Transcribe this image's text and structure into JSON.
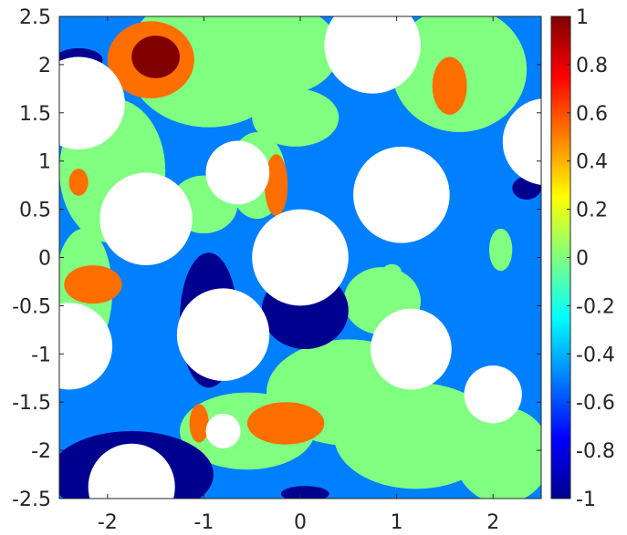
{
  "chart_data": {
    "type": "heatmap",
    "subtype": "filled-contour",
    "title": "",
    "xlabel": "",
    "ylabel": "",
    "xlim": [
      -2.5,
      2.5
    ],
    "ylim": [
      -2.5,
      2.5
    ],
    "x_ticks": [
      -2,
      -1,
      0,
      1,
      2
    ],
    "x_tick_labels": [
      "-2",
      "-1",
      "0",
      "1",
      "2"
    ],
    "y_ticks": [
      -2.5,
      -2,
      -1.5,
      -1,
      -0.5,
      0,
      0.5,
      1,
      1.5,
      2,
      2.5
    ],
    "y_tick_labels": [
      "-2.5",
      "-2",
      "-1.5",
      "-1",
      "-0.5",
      "0",
      "0.5",
      "1",
      "1.5",
      "2",
      "2.5"
    ],
    "grid": false,
    "colormap": "jet",
    "colorbar": {
      "position": "right",
      "range": [
        -1,
        1
      ],
      "ticks": [
        -1,
        -0.8,
        -0.6,
        -0.4,
        -0.2,
        0,
        0.2,
        0.4,
        0.6,
        0.8,
        1
      ],
      "tick_labels": [
        "-1",
        "-0.8",
        "-0.6",
        "-0.4",
        "-0.2",
        "0",
        "0.2",
        "0.4",
        "0.6",
        "0.8",
        "1"
      ]
    },
    "level_colors": {
      "-1": "#00008f",
      "-0.5": "#0080ff",
      "0": "#80ff80",
      "0.5": "#ff6e00",
      "1": "#800000"
    },
    "background_level": -0.5,
    "regions": [
      {
        "level": 0,
        "shape": "ellipse",
        "cx": -0.95,
        "cy": 2.05,
        "rx": 0.85,
        "ry": 0.7
      },
      {
        "level": 0,
        "shape": "ellipse",
        "cx": -0.15,
        "cy": 2.15,
        "rx": 0.55,
        "ry": 0.45
      },
      {
        "level": 0,
        "shape": "ellipse",
        "cx": 1.65,
        "cy": 1.95,
        "rx": 0.7,
        "ry": 0.65
      },
      {
        "level": 0,
        "shape": "ellipse",
        "cx": -1.95,
        "cy": 0.9,
        "rx": 0.55,
        "ry": 0.75
      },
      {
        "level": 0,
        "shape": "ellipse",
        "cx": -2.25,
        "cy": -0.35,
        "rx": 0.3,
        "ry": 0.65
      },
      {
        "level": 0,
        "shape": "ellipse",
        "cx": -0.05,
        "cy": 1.45,
        "rx": 0.45,
        "ry": 0.3
      },
      {
        "level": 0,
        "shape": "ellipse",
        "cx": -0.45,
        "cy": 0.85,
        "rx": 0.3,
        "ry": 0.45
      },
      {
        "level": 0,
        "shape": "ellipse",
        "cx": -1.0,
        "cy": 0.55,
        "rx": 0.35,
        "ry": 0.3
      },
      {
        "level": 0,
        "shape": "ellipse",
        "cx": 0.5,
        "cy": -1.4,
        "rx": 0.85,
        "ry": 0.55
      },
      {
        "level": 0,
        "shape": "ellipse",
        "cx": 1.2,
        "cy": -1.85,
        "rx": 0.85,
        "ry": 0.55
      },
      {
        "level": 0,
        "shape": "ellipse",
        "cx": 2.1,
        "cy": -2.05,
        "rx": 0.5,
        "ry": 0.5
      },
      {
        "level": 0,
        "shape": "ellipse",
        "cx": -0.55,
        "cy": -1.8,
        "rx": 0.7,
        "ry": 0.4
      },
      {
        "level": 0,
        "shape": "ellipse",
        "cx": 0.85,
        "cy": -0.45,
        "rx": 0.4,
        "ry": 0.35
      },
      {
        "level": 0,
        "shape": "ellipse",
        "cx": 0.95,
        "cy": -0.15,
        "rx": 0.1,
        "ry": 0.08
      },
      {
        "level": 0,
        "shape": "ellipse",
        "cx": 2.08,
        "cy": 0.08,
        "rx": 0.12,
        "ry": 0.22
      },
      {
        "level": -1,
        "shape": "ellipse",
        "cx": -2.3,
        "cy": 2.05,
        "rx": 0.25,
        "ry": 0.12
      },
      {
        "level": -1,
        "shape": "ellipse",
        "cx": -0.95,
        "cy": -0.65,
        "rx": 0.3,
        "ry": 0.7
      },
      {
        "level": -1,
        "shape": "ellipse",
        "cx": 0.05,
        "cy": -0.55,
        "rx": 0.45,
        "ry": 0.4
      },
      {
        "level": -1,
        "shape": "ellipse",
        "cx": -1.75,
        "cy": -2.25,
        "rx": 0.85,
        "ry": 0.45
      },
      {
        "level": -1,
        "shape": "ellipse",
        "cx": 2.35,
        "cy": 0.72,
        "rx": 0.15,
        "ry": 0.12
      },
      {
        "level": -1,
        "shape": "ellipse",
        "cx": 0.05,
        "cy": -2.45,
        "rx": 0.25,
        "ry": 0.08
      },
      {
        "level": 0.5,
        "shape": "ellipse",
        "cx": -1.55,
        "cy": 2.05,
        "rx": 0.45,
        "ry": 0.4
      },
      {
        "level": 0.5,
        "shape": "ellipse",
        "cx": 1.55,
        "cy": 1.78,
        "rx": 0.18,
        "ry": 0.3
      },
      {
        "level": 0.5,
        "shape": "ellipse",
        "cx": -2.15,
        "cy": -0.28,
        "rx": 0.3,
        "ry": 0.2
      },
      {
        "level": 0.5,
        "shape": "ellipse",
        "cx": -2.3,
        "cy": 0.78,
        "rx": 0.1,
        "ry": 0.14
      },
      {
        "level": 0.5,
        "shape": "ellipse",
        "cx": -0.25,
        "cy": 0.75,
        "rx": 0.12,
        "ry": 0.32
      },
      {
        "level": 0.5,
        "shape": "ellipse",
        "cx": -1.05,
        "cy": -1.72,
        "rx": 0.1,
        "ry": 0.2
      },
      {
        "level": 0.5,
        "shape": "ellipse",
        "cx": -0.15,
        "cy": -1.72,
        "rx": 0.4,
        "ry": 0.22
      },
      {
        "level": 1,
        "shape": "ellipse",
        "cx": -1.5,
        "cy": 2.08,
        "rx": 0.25,
        "ry": 0.22
      }
    ],
    "holes": [
      {
        "cx": 0.75,
        "cy": 2.2,
        "r": 0.5
      },
      {
        "cx": -2.3,
        "cy": 1.6,
        "r": 0.48
      },
      {
        "cx": 2.55,
        "cy": 1.2,
        "r": 0.45
      },
      {
        "cx": -0.65,
        "cy": 0.88,
        "r": 0.33
      },
      {
        "cx": -1.6,
        "cy": 0.4,
        "r": 0.48
      },
      {
        "cx": 1.05,
        "cy": 0.65,
        "r": 0.5
      },
      {
        "cx": 0.0,
        "cy": 0.0,
        "r": 0.5
      },
      {
        "cx": -0.8,
        "cy": -0.8,
        "r": 0.48
      },
      {
        "cx": -2.4,
        "cy": -0.92,
        "r": 0.45
      },
      {
        "cx": 1.15,
        "cy": -0.95,
        "r": 0.42
      },
      {
        "cx": 2.0,
        "cy": -1.42,
        "r": 0.3
      },
      {
        "cx": -0.8,
        "cy": -1.8,
        "r": 0.18
      },
      {
        "cx": -1.75,
        "cy": -2.38,
        "r": 0.45
      }
    ]
  }
}
